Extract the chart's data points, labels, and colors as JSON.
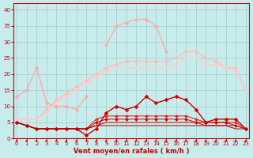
{
  "xlabel": "Vent moyen/en rafales ( km/h )",
  "bg_color": "#c8ecec",
  "grid_color": "#a0cccc",
  "x_ticks": [
    0,
    1,
    2,
    3,
    4,
    5,
    6,
    7,
    8,
    9,
    10,
    11,
    12,
    13,
    14,
    15,
    16,
    17,
    18,
    19,
    20,
    21,
    22,
    23
  ],
  "y_ticks": [
    0,
    5,
    10,
    15,
    20,
    25,
    30,
    35,
    40
  ],
  "lines": [
    {
      "comment": "light pink - upper jagged line left part (starts high ~13, goes to ~22 at x=2, drops)",
      "color": "#ffaaaa",
      "marker": "D",
      "markersize": 2.5,
      "linewidth": 1.0,
      "y": [
        13,
        15,
        22,
        11,
        10,
        10,
        9,
        13,
        null,
        null,
        null,
        null,
        null,
        null,
        null,
        null,
        null,
        null,
        null,
        null,
        null,
        null,
        null,
        null
      ]
    },
    {
      "comment": "light pink - upper smooth curve (rises from ~6 to peak ~37 at x=15-16, falls)",
      "color": "#ffaaaa",
      "marker": "D",
      "markersize": 2.5,
      "linewidth": 1.0,
      "y": [
        null,
        null,
        null,
        null,
        null,
        null,
        null,
        null,
        null,
        29,
        35,
        36,
        37,
        37,
        35,
        27,
        null,
        null,
        null,
        null,
        null,
        null,
        null,
        null
      ]
    },
    {
      "comment": "salmon - continuous line rising from ~6 to ~27 around x=17, then down to ~15",
      "color": "#ffbbbb",
      "marker": "D",
      "markersize": 2.5,
      "linewidth": 1.0,
      "y": [
        6,
        6,
        6,
        9,
        12,
        14,
        16,
        18,
        20,
        22,
        23,
        24,
        24,
        24,
        24,
        24,
        25,
        27,
        27,
        25,
        24,
        22,
        22,
        15
      ]
    },
    {
      "comment": "lighter salmon - continuous smooth line slightly below",
      "color": "#ffcccc",
      "marker": "D",
      "markersize": 2.0,
      "linewidth": 0.9,
      "y": [
        6,
        6,
        6,
        8,
        11,
        13,
        15,
        17,
        19,
        21,
        22,
        22,
        22,
        22,
        22,
        22,
        23,
        25,
        25,
        23,
        23,
        22,
        21,
        15
      ]
    },
    {
      "comment": "dark red - jagged line with peaks around x=13-14 (~13)",
      "color": "#cc0000",
      "marker": "D",
      "markersize": 2.5,
      "linewidth": 1.0,
      "y": [
        5,
        4,
        3,
        3,
        3,
        3,
        3,
        1,
        3,
        8,
        10,
        9,
        10,
        13,
        11,
        12,
        13,
        12,
        9,
        5,
        6,
        6,
        6,
        3
      ]
    },
    {
      "comment": "medium red - slightly higher baseline",
      "color": "#ee2222",
      "marker": "D",
      "markersize": 2.0,
      "linewidth": 0.8,
      "y": [
        5,
        4,
        3,
        3,
        3,
        3,
        3,
        3,
        6,
        7,
        7,
        7,
        7,
        7,
        7,
        7,
        7,
        7,
        6,
        5,
        5,
        5,
        5,
        3
      ]
    },
    {
      "comment": "red flat low line",
      "color": "#cc0000",
      "marker": "D",
      "markersize": 2.0,
      "linewidth": 0.7,
      "y": [
        5,
        4,
        3,
        3,
        3,
        3,
        3,
        3,
        5,
        6,
        6,
        6,
        6,
        6,
        6,
        6,
        6,
        6,
        5,
        5,
        5,
        5,
        4,
        3
      ]
    },
    {
      "comment": "red very flat",
      "color": "#dd0000",
      "marker": null,
      "markersize": 1.5,
      "linewidth": 0.7,
      "y": [
        5,
        4,
        3,
        3,
        3,
        3,
        3,
        3,
        4,
        5,
        5,
        5,
        5,
        5,
        5,
        5,
        5,
        5,
        5,
        4,
        4,
        4,
        4,
        3
      ]
    },
    {
      "comment": "darkest red flat",
      "color": "#aa0000",
      "marker": null,
      "markersize": 1.5,
      "linewidth": 0.7,
      "y": [
        5,
        4,
        3,
        3,
        3,
        3,
        3,
        3,
        4,
        4,
        4,
        4,
        4,
        4,
        4,
        4,
        4,
        4,
        4,
        4,
        4,
        4,
        3,
        3
      ]
    }
  ],
  "arrow_color": "#cc0000",
  "ylim": [
    0,
    42
  ],
  "xlim": [
    -0.3,
    23.3
  ],
  "title_fontsize": 6,
  "tick_fontsize": 5,
  "label_fontsize": 6
}
